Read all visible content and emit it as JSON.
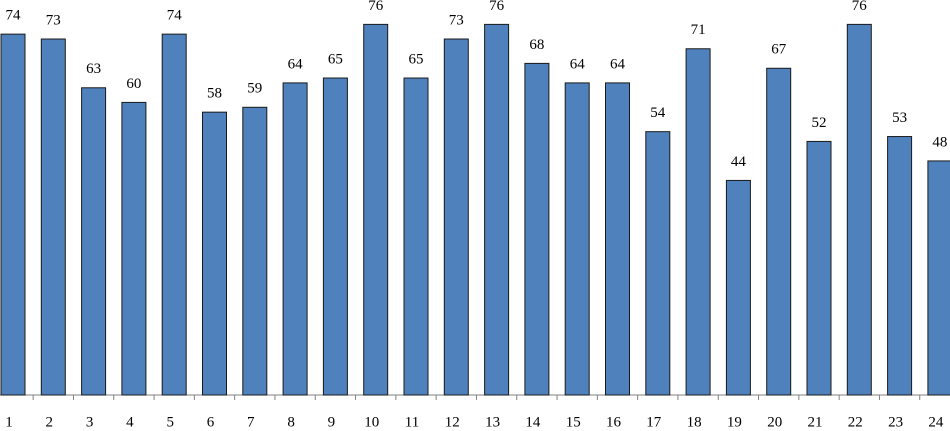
{
  "chart_data": {
    "type": "bar",
    "categories": [
      "1",
      "2",
      "3",
      "4",
      "5",
      "6",
      "7",
      "8",
      "9",
      "10",
      "11",
      "12",
      "13",
      "14",
      "15",
      "16",
      "17",
      "18",
      "19",
      "20",
      "21",
      "22",
      "23",
      "24"
    ],
    "values": [
      74,
      73,
      63,
      60,
      74,
      58,
      59,
      64,
      65,
      76,
      65,
      73,
      76,
      68,
      64,
      64,
      54,
      71,
      44,
      67,
      52,
      76,
      53,
      48
    ],
    "color": "#4f81bd",
    "ylim": [
      0,
      81
    ]
  }
}
